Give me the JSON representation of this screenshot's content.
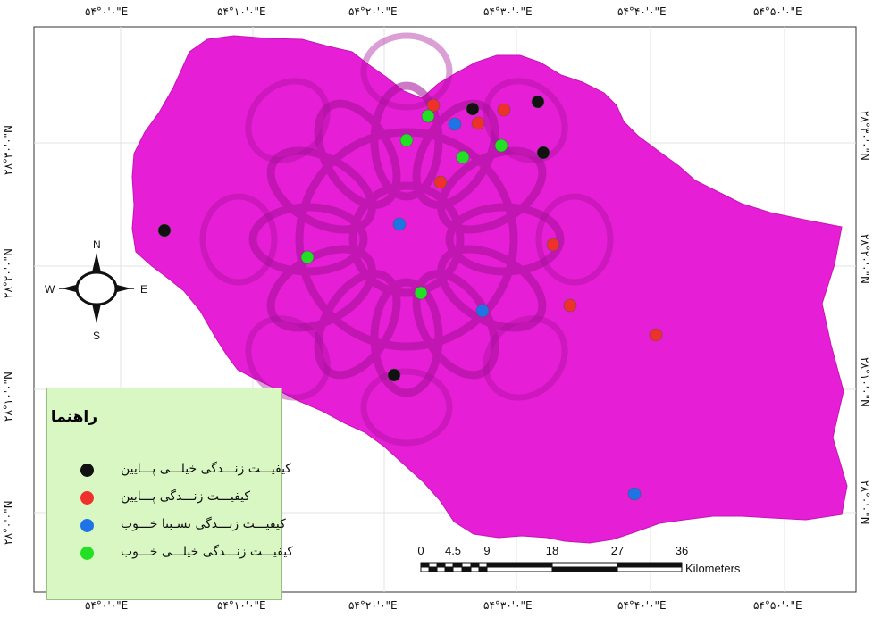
{
  "colors": {
    "region_fill": "#e61fd6",
    "frame_bg": "#ffffff",
    "grid": "#e3e3e3",
    "legend_bg": "#d8f7c2",
    "very_low": "#111111",
    "low": "#f0302a",
    "relatively_good": "#1f73e8",
    "very_good": "#22e024"
  },
  "axes": {
    "top": [
      "۵۴°۰'۰\"E",
      "۵۴°۱۰'۰\"E",
      "۵۴°۲۰'۰\"E",
      "۵۴°۳۰'۰\"E",
      "۵۴°۴۰'۰\"E",
      "۵۴°۵۰'۰\"E"
    ],
    "bottom": [
      "۵۴°۰'۰\"E",
      "۵۴°۱۰'۰\"E",
      "۵۴°۲۰'۰\"E",
      "۵۴°۳۰'۰\"E",
      "۵۴°۴۰'۰\"E",
      "۵۴°۵۰'۰\"E"
    ],
    "left": [
      "۲۸°۳۰'۰\"N",
      "۲۸°۲۰'۰\"N",
      "۲۸°۱۰'۰\"N",
      "۲۸°۰'۰\"N"
    ],
    "right": [
      "۲۸°۳۰'۰\"N",
      "۲۸°۲۰'۰\"N",
      "۲۸°۱۰'۰\"N",
      "۲۸°۰'۰\"N"
    ]
  },
  "compass": {
    "north": "N",
    "south": "S",
    "east": "E",
    "west": "W"
  },
  "legend": {
    "title": "راهنما",
    "items": [
      {
        "label": "کیفیـــت زنـــدگی خیلـــی پـــایین",
        "color": "#111111"
      },
      {
        "label": "کیفیـــت زنـــدگی پـــایین",
        "color": "#f0302a"
      },
      {
        "label": "کیفیـــت زنـــدگی نسـبتا خـــوب",
        "color": "#1f73e8"
      },
      {
        "label": "کیفیـــت زنـــدگی خیلـــی خـــوب",
        "color": "#22e024"
      }
    ]
  },
  "scale_bar": {
    "labels": [
      "0",
      "4.5",
      "9",
      "18",
      "27",
      "36"
    ],
    "unit": "Kilometers"
  }
}
